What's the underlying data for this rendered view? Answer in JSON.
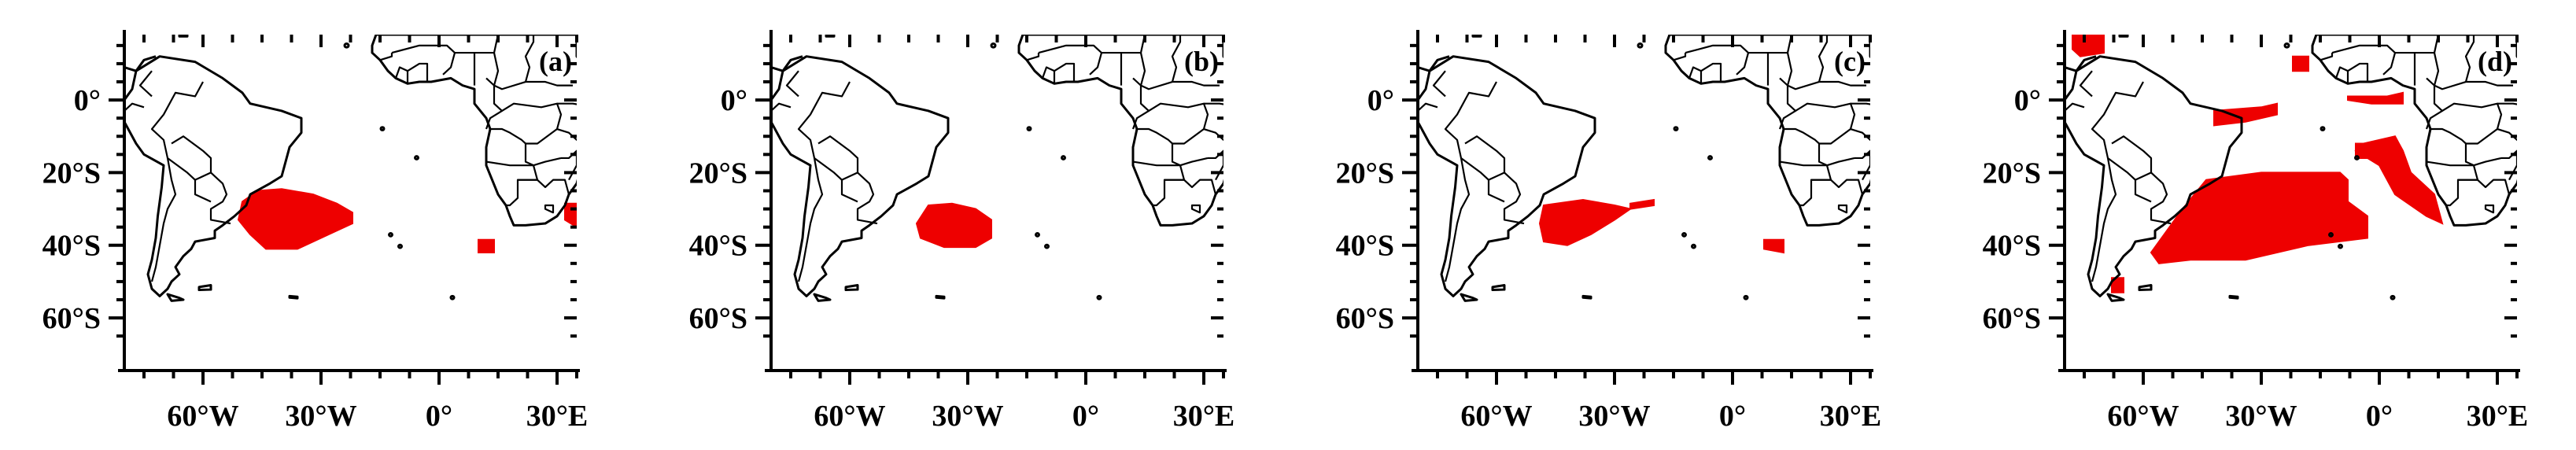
{
  "figure": {
    "type": "map-panels",
    "lon_range": [
      -80,
      35
    ],
    "lat_range": [
      -68,
      18
    ],
    "lon_ticks": [
      {
        "value": -60,
        "label": "60°W"
      },
      {
        "value": -30,
        "label": "30°W"
      },
      {
        "value": 0,
        "label": "0°"
      },
      {
        "value": 30,
        "label": "30°E"
      }
    ],
    "lat_ticks": [
      {
        "value": 0,
        "label": "0°"
      },
      {
        "value": -20,
        "label": "20°S"
      },
      {
        "value": -40,
        "label": "40°S"
      },
      {
        "value": -60,
        "label": "60°S"
      }
    ],
    "minor_lon_ticks": [
      -75,
      -67.5,
      -52.5,
      -45,
      -37.5,
      -22.5,
      -15,
      -7.5,
      7.5,
      15,
      22.5,
      30,
      35
    ],
    "minor_lat_ticks": [
      15,
      10,
      5,
      -5,
      -10,
      -15,
      -25,
      -30,
      -35,
      -45,
      -50,
      -55,
      -65
    ],
    "shading_color": "#ee0000",
    "coastline_color": "#000000"
  },
  "panels": [
    {
      "label": "(a)",
      "regions": [
        {
          "name": "south-atlantic-patch",
          "polygon": [
            [
              -46,
              -25
            ],
            [
              -40,
              -24.5
            ],
            [
              -32,
              -26
            ],
            [
              -26,
              -28.5
            ],
            [
              -22,
              -31
            ],
            [
              -22,
              -34
            ],
            [
              -28,
              -37
            ],
            [
              -36,
              -41
            ],
            [
              -44,
              -41
            ],
            [
              -48,
              -37
            ],
            [
              -51,
              -33
            ],
            [
              -50,
              -28
            ]
          ]
        },
        {
          "name": "south-of-africa-patch",
          "polygon": [
            [
              10,
              -38.5
            ],
            [
              14,
              -38.5
            ],
            [
              14,
              -42
            ],
            [
              10,
              -42
            ]
          ]
        },
        {
          "name": "east-edge-patch",
          "polygon": [
            [
              32,
              -28.5
            ],
            [
              35,
              -28.5
            ],
            [
              35,
              -35
            ],
            [
              32,
              -33
            ]
          ]
        }
      ]
    },
    {
      "label": "(b)",
      "regions": [
        {
          "name": "south-atlantic-patch",
          "polygon": [
            [
              -40,
              -29
            ],
            [
              -34,
              -28.5
            ],
            [
              -28,
              -30
            ],
            [
              -24,
              -33
            ],
            [
              -24,
              -38
            ],
            [
              -28,
              -40.5
            ],
            [
              -36,
              -40.5
            ],
            [
              -42,
              -38
            ],
            [
              -43,
              -34
            ]
          ]
        }
      ]
    },
    {
      "label": "(c)",
      "regions": [
        {
          "name": "south-atlantic-patch",
          "polygon": [
            [
              -48,
              -29
            ],
            [
              -38,
              -27.5
            ],
            [
              -30,
              -29
            ],
            [
              -26,
              -30
            ],
            [
              -30,
              -33
            ],
            [
              -36,
              -37
            ],
            [
              -42,
              -40
            ],
            [
              -48,
              -39
            ],
            [
              -49,
              -34
            ]
          ]
        },
        {
          "name": "tail-patch",
          "polygon": [
            [
              -26,
              -28.5
            ],
            [
              -20,
              -27.5
            ],
            [
              -20,
              -29
            ],
            [
              -26,
              -30
            ]
          ]
        },
        {
          "name": "south-of-africa-patch",
          "polygon": [
            [
              8,
              -38.5
            ],
            [
              13,
              -38.5
            ],
            [
              13,
              -42
            ],
            [
              8,
              -41
            ]
          ]
        }
      ]
    },
    {
      "label": "(d)",
      "regions": [
        {
          "name": "south-atlantic-large-patch",
          "polygon": [
            [
              -58,
              -42
            ],
            [
              -50,
              -30
            ],
            [
              -44,
              -22
            ],
            [
              -30,
              -20
            ],
            [
              -20,
              -20
            ],
            [
              -10,
              -20
            ],
            [
              -8,
              -22
            ],
            [
              -8,
              -28
            ],
            [
              -3,
              -32
            ],
            [
              -3,
              -38
            ],
            [
              -18,
              -40
            ],
            [
              -34,
              -44
            ],
            [
              -48,
              -44
            ],
            [
              -56,
              -45
            ]
          ]
        },
        {
          "name": "brazil-offshore-patch",
          "polygon": [
            [
              -42,
              -3
            ],
            [
              -30,
              -2
            ],
            [
              -26,
              -1
            ],
            [
              -26,
              -4
            ],
            [
              -34,
              -6
            ],
            [
              -42,
              -7
            ]
          ]
        },
        {
          "name": "gulf-of-guinea-patch",
          "polygon": [
            [
              -8,
              1
            ],
            [
              2,
              1
            ],
            [
              6,
              2
            ],
            [
              6,
              -1
            ],
            [
              -2,
              -1
            ],
            [
              -8,
              0
            ]
          ]
        },
        {
          "name": "north-equatorial-patch",
          "polygon": [
            [
              -22,
              12
            ],
            [
              -18,
              12
            ],
            [
              -18,
              8
            ],
            [
              -22,
              8
            ]
          ]
        },
        {
          "name": "nw-corner-patch",
          "polygon": [
            [
              -78,
              18
            ],
            [
              -70,
              18
            ],
            [
              -70,
              13
            ],
            [
              -76,
              12
            ],
            [
              -78,
              14
            ]
          ]
        },
        {
          "name": "angola-benguela-patch",
          "polygon": [
            [
              -4,
              -12
            ],
            [
              4,
              -10
            ],
            [
              6,
              -14
            ],
            [
              8,
              -20
            ],
            [
              14,
              -26
            ],
            [
              16,
              -34
            ],
            [
              12,
              -32
            ],
            [
              4,
              -26
            ],
            [
              0,
              -18
            ],
            [
              -6,
              -14
            ]
          ]
        },
        {
          "name": "angola-offshore-patch",
          "polygon": [
            [
              -6,
              -12
            ],
            [
              -2,
              -12
            ],
            [
              -2,
              -16
            ],
            [
              -6,
              -16
            ]
          ]
        },
        {
          "name": "patagonian-coast-patch",
          "polygon": [
            [
              -68,
              -49
            ],
            [
              -65,
              -49
            ],
            [
              -65,
              -53
            ],
            [
              -68,
              -53
            ]
          ]
        }
      ]
    }
  ]
}
